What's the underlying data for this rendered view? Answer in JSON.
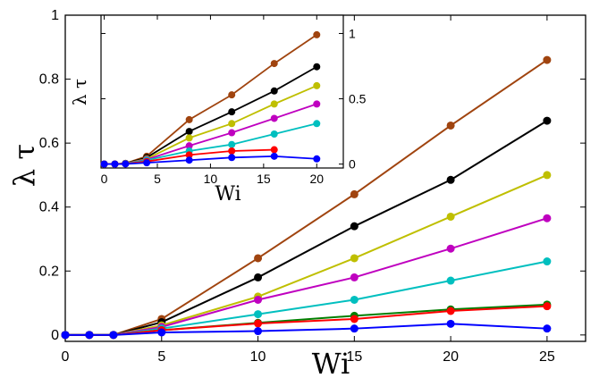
{
  "chart_data": [
    {
      "type": "line",
      "xlabel": "Wi",
      "ylabel": "λ τ",
      "xlim": [
        0,
        27
      ],
      "ylim": [
        -0.02,
        1.0
      ],
      "x_ticks": [
        "0",
        "5",
        "10",
        "15",
        "20",
        "25"
      ],
      "y_ticks": [
        "0",
        "0.2",
        "0.4",
        "0.6",
        "0.8",
        "1"
      ],
      "grid": false,
      "series": [
        {
          "color": "#A0440F",
          "points": [
            [
              0,
              0
            ],
            [
              1.25,
              0
            ],
            [
              2.5,
              0
            ],
            [
              5,
              0.05
            ],
            [
              10,
              0.24
            ],
            [
              15,
              0.44
            ],
            [
              20,
              0.655
            ],
            [
              25,
              0.86
            ]
          ]
        },
        {
          "color": "#000000",
          "points": [
            [
              0,
              0
            ],
            [
              1.25,
              0
            ],
            [
              2.5,
              0
            ],
            [
              5,
              0.04
            ],
            [
              10,
              0.18
            ],
            [
              15,
              0.34
            ],
            [
              20,
              0.485
            ],
            [
              25,
              0.67
            ]
          ]
        },
        {
          "color": "#BFBF00",
          "points": [
            [
              0,
              0
            ],
            [
              1.25,
              0
            ],
            [
              2.5,
              0
            ],
            [
              5,
              0.03
            ],
            [
              10,
              0.12
            ],
            [
              15,
              0.24
            ],
            [
              20,
              0.37
            ],
            [
              25,
              0.5
            ]
          ]
        },
        {
          "color": "#BF00BF",
          "points": [
            [
              0,
              0
            ],
            [
              1.25,
              0
            ],
            [
              2.5,
              0
            ],
            [
              5,
              0.025
            ],
            [
              10,
              0.11
            ],
            [
              15,
              0.18
            ],
            [
              20,
              0.27
            ],
            [
              25,
              0.365
            ]
          ]
        },
        {
          "color": "#00BFBF",
          "points": [
            [
              0,
              0
            ],
            [
              1.25,
              0
            ],
            [
              2.5,
              0
            ],
            [
              5,
              0.02
            ],
            [
              10,
              0.065
            ],
            [
              15,
              0.11
            ],
            [
              20,
              0.17
            ],
            [
              25,
              0.23
            ]
          ]
        },
        {
          "color": "#007F00",
          "points": [
            [
              0,
              0
            ],
            [
              1.25,
              0
            ],
            [
              2.5,
              0
            ],
            [
              5,
              0.015
            ],
            [
              10,
              0.038
            ],
            [
              15,
              0.06
            ],
            [
              20,
              0.08
            ],
            [
              25,
              0.095
            ]
          ]
        },
        {
          "color": "#FF0000",
          "points": [
            [
              0,
              0
            ],
            [
              1.25,
              0
            ],
            [
              2.5,
              0
            ],
            [
              5,
              0.015
            ],
            [
              10,
              0.036
            ],
            [
              15,
              0.05
            ],
            [
              20,
              0.075
            ],
            [
              25,
              0.09
            ]
          ]
        },
        {
          "color": "#0000FF",
          "points": [
            [
              0,
              0
            ],
            [
              1.25,
              0
            ],
            [
              2.5,
              0
            ],
            [
              5,
              0.008
            ],
            [
              10,
              0.012
            ],
            [
              15,
              0.02
            ],
            [
              20,
              0.035
            ],
            [
              25,
              0.02
            ]
          ]
        }
      ]
    },
    {
      "type": "line",
      "xlabel": "Wi",
      "ylabel": "λ τ",
      "xlim": [
        -0.3,
        22.5
      ],
      "ylim": [
        -0.03,
        1.14
      ],
      "x_ticks": [
        "0",
        "5",
        "10",
        "15",
        "20"
      ],
      "y_ticks": [
        "0",
        "0.5",
        "1"
      ],
      "grid": false,
      "series": [
        {
          "color": "#A0440F",
          "points": [
            [
              0,
              0
            ],
            [
              1,
              0
            ],
            [
              2,
              0.005
            ],
            [
              4,
              0.06
            ],
            [
              8,
              0.34
            ],
            [
              12,
              0.53
            ],
            [
              16,
              0.77
            ],
            [
              20,
              0.99
            ]
          ]
        },
        {
          "color": "#000000",
          "points": [
            [
              0,
              0
            ],
            [
              1,
              0
            ],
            [
              2,
              0.005
            ],
            [
              4,
              0.05
            ],
            [
              8,
              0.25
            ],
            [
              12,
              0.4
            ],
            [
              16,
              0.56
            ],
            [
              20,
              0.745
            ]
          ]
        },
        {
          "color": "#BFBF00",
          "points": [
            [
              0,
              0
            ],
            [
              1,
              0
            ],
            [
              2,
              0.004
            ],
            [
              4,
              0.04
            ],
            [
              8,
              0.2
            ],
            [
              12,
              0.31
            ],
            [
              16,
              0.46
            ],
            [
              20,
              0.6
            ]
          ]
        },
        {
          "color": "#BF00BF",
          "points": [
            [
              0,
              0
            ],
            [
              1,
              0
            ],
            [
              2,
              0.003
            ],
            [
              4,
              0.035
            ],
            [
              8,
              0.14
            ],
            [
              12,
              0.24
            ],
            [
              16,
              0.35
            ],
            [
              20,
              0.46
            ]
          ]
        },
        {
          "color": "#00BFBF",
          "points": [
            [
              0,
              0
            ],
            [
              1,
              0
            ],
            [
              2,
              0.003
            ],
            [
              4,
              0.03
            ],
            [
              8,
              0.1
            ],
            [
              12,
              0.15
            ],
            [
              16,
              0.23
            ],
            [
              20,
              0.31
            ]
          ]
        },
        {
          "color": "#FF0000",
          "points": [
            [
              0,
              0
            ],
            [
              1,
              0
            ],
            [
              2,
              0.002
            ],
            [
              4,
              0.02
            ],
            [
              8,
              0.07
            ],
            [
              12,
              0.1
            ],
            [
              16,
              0.11
            ]
          ]
        },
        {
          "color": "#0000FF",
          "points": [
            [
              0,
              0
            ],
            [
              1,
              0
            ],
            [
              2,
              0.001
            ],
            [
              4,
              0.01
            ],
            [
              8,
              0.03
            ],
            [
              12,
              0.05
            ],
            [
              16,
              0.06
            ],
            [
              20,
              0.04
            ]
          ]
        }
      ]
    }
  ]
}
